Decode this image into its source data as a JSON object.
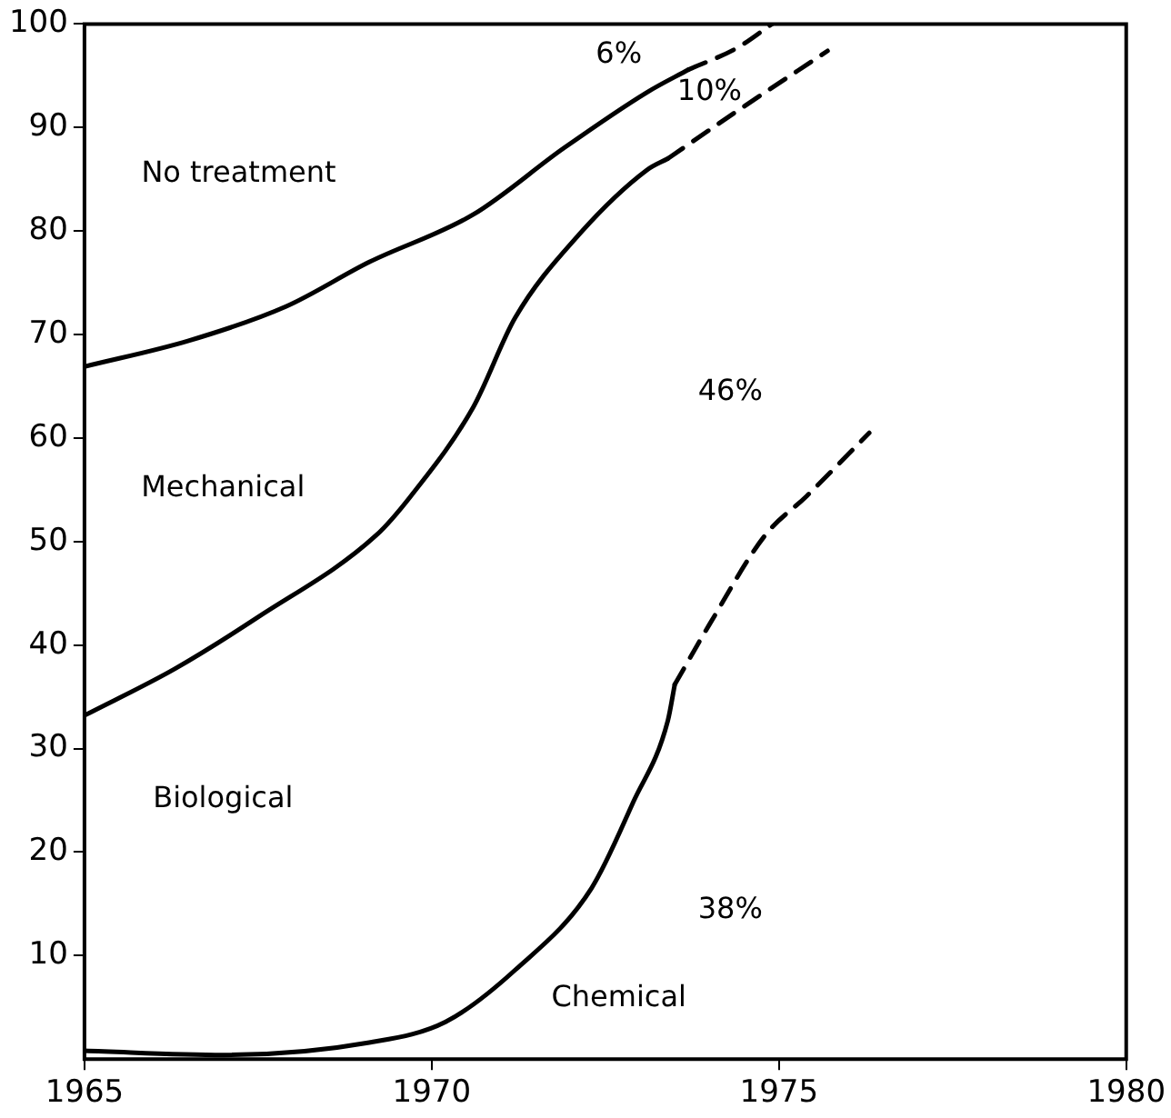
{
  "chart_data": {
    "type": "line",
    "xlim": [
      1965,
      1980
    ],
    "xticks": [
      1965,
      1970,
      1975,
      1980
    ],
    "ylim": [
      0,
      100
    ],
    "yticks": [
      10,
      20,
      30,
      40,
      50,
      60,
      70,
      80,
      90,
      100
    ],
    "grid": false,
    "legend": false,
    "marker": "none",
    "series": [
      {
        "color": "#000000",
        "line_style": "solid",
        "x": [
          1965,
          1966.5,
          1967.9,
          1969.1,
          1970.6,
          1971.9,
          1973.1,
          1973.7
        ],
        "values": [
          66.9,
          69.4,
          72.7,
          77.0,
          81.6,
          88.0,
          93.4,
          95.6
        ]
      },
      {
        "color": "#000000",
        "line_style": "dashed",
        "x": [
          1973.7,
          1974.4,
          1974.9
        ],
        "values": [
          95.6,
          97.7,
          100
        ]
      },
      {
        "color": "#000000",
        "line_style": "solid",
        "x": [
          1965,
          1966.3,
          1967.5,
          1969.2,
          1969.7,
          1970.6,
          1971.2,
          1972.1,
          1973.1,
          1973.4
        ],
        "values": [
          33.2,
          37.7,
          42.7,
          50.6,
          54.4,
          63.0,
          71.6,
          79.5,
          85.9,
          87.0
        ]
      },
      {
        "color": "#000000",
        "line_style": "dashed",
        "x": [
          1973.4,
          1974.4,
          1975.7
        ],
        "values": [
          87.0,
          91.6,
          97.4
        ]
      },
      {
        "color": "#000000",
        "line_style": "solid",
        "x": [
          1965,
          1967,
          1969.1,
          1970.2,
          1971.2,
          1972.3,
          1972.9,
          1973.4,
          1973.5
        ],
        "values": [
          0.8,
          0.4,
          1.6,
          3.6,
          8.6,
          16.5,
          24.8,
          32.7,
          36.2
        ]
      },
      {
        "color": "#000000",
        "line_style": "dashed",
        "x": [
          1973.5,
          1974.0,
          1974.8,
          1975.4,
          1976.3
        ],
        "values": [
          36.2,
          42.0,
          50.6,
          54.4,
          60.5
        ]
      }
    ],
    "annotations": [
      "6%",
      "10%",
      "No treatment",
      "46%",
      "Mechanical",
      "Biological",
      "38%",
      "Chemical"
    ]
  }
}
